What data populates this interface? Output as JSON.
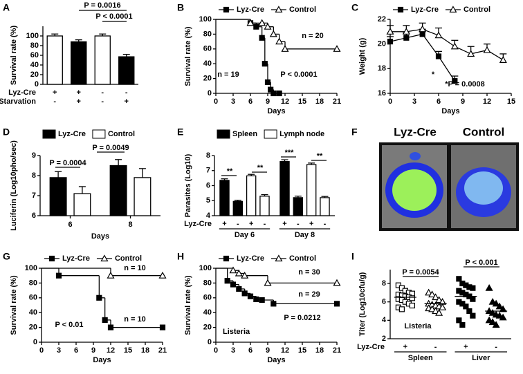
{
  "chart_data": [
    {
      "type": "bar",
      "panel": "A",
      "ylabel": "Survival rate (%)",
      "values": [
        100,
        88,
        100,
        57
      ],
      "errors": [
        4,
        4,
        4,
        5
      ],
      "colors": [
        "#ffffff",
        "#000000",
        "#ffffff",
        "#000000"
      ],
      "ylim": [
        0,
        120
      ],
      "yticks": [
        0,
        20,
        40,
        60,
        80,
        100
      ],
      "rows": [
        {
          "label": "Lyz-Cre",
          "signs": [
            "+",
            "+",
            "-",
            "-"
          ]
        },
        {
          "label": "Starvation",
          "signs": [
            "-",
            "+",
            "-",
            "+"
          ]
        }
      ],
      "annotations": [
        "P = 0.0016",
        "P < 0.0001"
      ]
    },
    {
      "type": "survival",
      "panel": "B",
      "ylabel": "Survival rate (%)",
      "xlabel": "Days",
      "series": [
        {
          "name": "Lyz-Cre",
          "color": "#000000",
          "marker": "square",
          "x": [
            0,
            6,
            7,
            8,
            8.5,
            9,
            9.5,
            10,
            11
          ],
          "values": [
            100,
            95,
            90,
            75,
            40,
            15,
            5,
            0,
            0
          ]
        },
        {
          "name": "Control",
          "color": "#000000",
          "marker": "open-triangle",
          "x": [
            0,
            6,
            8,
            9,
            10,
            11,
            12,
            21
          ],
          "values": [
            100,
            95,
            95,
            90,
            80,
            70,
            60,
            60
          ]
        }
      ],
      "xlim": [
        0,
        21
      ],
      "xticks": [
        0,
        3,
        6,
        9,
        12,
        15,
        18,
        21
      ],
      "ylim": [
        0,
        100
      ],
      "yticks": [
        0,
        20,
        40,
        60,
        80,
        100
      ],
      "annotations": [
        "n = 20",
        "n = 19",
        "P < 0.0001"
      ]
    },
    {
      "type": "line",
      "panel": "C",
      "ylabel": "Weight (g)",
      "xlabel": "Days",
      "series": [
        {
          "name": "Lyz-Cre",
          "color": "#000000",
          "marker": "square",
          "x": [
            0,
            2,
            4,
            6,
            8
          ],
          "values": [
            20.2,
            20.5,
            20.8,
            19,
            17
          ],
          "errors": [
            0.4,
            0.4,
            0.4,
            0.4,
            0.4
          ]
        },
        {
          "name": "Control",
          "color": "#000000",
          "marker": "open-triangle",
          "x": [
            0,
            2,
            4,
            6,
            8,
            10,
            12,
            14
          ],
          "values": [
            21,
            21,
            21.2,
            20.7,
            19.8,
            19.2,
            19.5,
            18.7
          ],
          "errors": [
            0.5,
            0.5,
            0.5,
            0.6,
            0.5,
            0.6,
            0.5,
            0.5
          ]
        }
      ],
      "xlim": [
        0,
        15
      ],
      "xticks": [
        0,
        3,
        6,
        9,
        12,
        15
      ],
      "ylim": [
        16,
        22
      ],
      "yticks": [
        16,
        18,
        20,
        22
      ],
      "annotations": [
        "*",
        "*P = 0.0008"
      ]
    },
    {
      "type": "groupedbar",
      "panel": "D",
      "ylabel": "Luciferin (Log10pho/sec)",
      "xlabel": "Days",
      "categories": [
        "6",
        "8"
      ],
      "series": [
        {
          "name": "Lyz-Cre",
          "color": "#000000",
          "values": [
            7.9,
            8.5
          ],
          "errors": [
            0.3,
            0.3
          ]
        },
        {
          "name": "Control",
          "color": "#ffffff",
          "values": [
            7.1,
            7.9
          ],
          "errors": [
            0.35,
            0.45
          ]
        }
      ],
      "ylim": [
        6,
        9
      ],
      "yticks": [
        6,
        7,
        8,
        9
      ],
      "annotations": [
        "P = 0.0004",
        "P = 0.0049"
      ]
    },
    {
      "type": "groupedbar",
      "panel": "E",
      "ylabel": "Parasites (Log10)",
      "groups": [
        "Day 6",
        "Day 8"
      ],
      "row_label": "Lyz-Cre",
      "signs": [
        "+",
        "-",
        "+",
        "-",
        "+",
        "-",
        "+",
        "-"
      ],
      "series": [
        {
          "name": "Spleen",
          "color": "#000000",
          "values": [
            6.35,
            4.95,
            7.6,
            5.2
          ],
          "errors": [
            0.1,
            0.08,
            0.12,
            0.1
          ]
        },
        {
          "name": "Lymph node",
          "color": "#ffffff",
          "values": [
            6.65,
            5.3,
            7.4,
            5.2
          ],
          "errors": [
            0.1,
            0.1,
            0.1,
            0.08
          ]
        }
      ],
      "ylim": [
        4,
        8
      ],
      "yticks": [
        4,
        5,
        6,
        7,
        8
      ],
      "annotations": [
        "**",
        "**",
        "***",
        "**"
      ]
    },
    {
      "type": "image",
      "panel": "F",
      "labels": [
        "Lyz-Cre",
        "Control"
      ]
    },
    {
      "type": "survival",
      "panel": "G",
      "ylabel": "Survival rate (%)",
      "xlabel": "Days",
      "series": [
        {
          "name": "Lyz-Cre",
          "color": "#000000",
          "marker": "square",
          "x": [
            0,
            3,
            10,
            11,
            12,
            21
          ],
          "values": [
            100,
            90,
            60,
            30,
            20,
            20
          ]
        },
        {
          "name": "Control",
          "color": "#000000",
          "marker": "open-triangle",
          "x": [
            0,
            12,
            21
          ],
          "values": [
            100,
            90,
            90
          ]
        }
      ],
      "xlim": [
        0,
        21
      ],
      "xticks": [
        0,
        3,
        6,
        9,
        12,
        15,
        18,
        21
      ],
      "ylim": [
        0,
        100
      ],
      "yticks": [
        0,
        20,
        40,
        60,
        80,
        100
      ],
      "annotations": [
        "n = 10",
        "n = 10",
        "P < 0.01"
      ]
    },
    {
      "type": "survival",
      "panel": "H",
      "ylabel": "Survival rate (%)",
      "xlabel": "Days",
      "series": [
        {
          "name": "Lyz-Cre",
          "color": "#000000",
          "marker": "square",
          "x": [
            0,
            2,
            3,
            4,
            5,
            6,
            7,
            8,
            10,
            21
          ],
          "values": [
            100,
            83,
            78,
            72,
            66,
            62,
            58,
            57,
            52,
            52
          ]
        },
        {
          "name": "Control",
          "color": "#000000",
          "marker": "open-triangle",
          "x": [
            0,
            3,
            4,
            5,
            9,
            21
          ],
          "values": [
            100,
            97,
            93,
            90,
            80,
            80
          ]
        }
      ],
      "xlim": [
        0,
        21
      ],
      "xticks": [
        0,
        3,
        6,
        9,
        12,
        15,
        18,
        21
      ],
      "ylim": [
        0,
        100
      ],
      "yticks": [
        0,
        20,
        40,
        60,
        80,
        100
      ],
      "annotations": [
        "n = 30",
        "n = 29",
        "Listeria",
        "P = 0.0212"
      ]
    },
    {
      "type": "dotplot",
      "panel": "I",
      "ylabel": "Titer (Log10cfu/g)",
      "row_label": "Lyz-Cre",
      "signs": [
        "+",
        "-",
        "+",
        "-"
      ],
      "tissues": [
        "Spleen",
        "Liver"
      ],
      "markers": [
        "open-square",
        "open-triangle",
        "square",
        "triangle"
      ],
      "groups": [
        [
          7.8,
          7.5,
          7.2,
          7.0,
          6.9,
          6.8,
          6.7,
          6.6,
          6.5,
          6.4,
          6.3,
          6.2,
          6.0,
          5.8,
          5.6,
          5.4,
          5.2
        ],
        [
          7.0,
          6.8,
          6.5,
          6.2,
          6.0,
          5.8,
          5.7,
          5.6,
          5.5,
          5.4,
          5.3,
          5.2,
          5.0,
          4.8
        ],
        [
          8.5,
          8.0,
          7.8,
          7.6,
          7.5,
          7.2,
          7.0,
          6.8,
          6.6,
          6.3,
          6.0,
          5.8,
          5.5,
          5.0,
          4.5,
          4.0,
          3.5
        ],
        [
          7.5,
          6.0,
          5.8,
          5.5,
          5.2,
          5.0,
          4.8,
          4.6,
          4.5,
          4.3,
          4.0,
          3.8,
          3.5
        ]
      ],
      "means": [
        6.5,
        5.8,
        6.6,
        5.0
      ],
      "ylim": [
        2,
        9.5
      ],
      "yticks": [
        2,
        4,
        6,
        8
      ],
      "annotations": [
        "P = 0.0054",
        "P < 0.001",
        "Listeria"
      ]
    }
  ]
}
